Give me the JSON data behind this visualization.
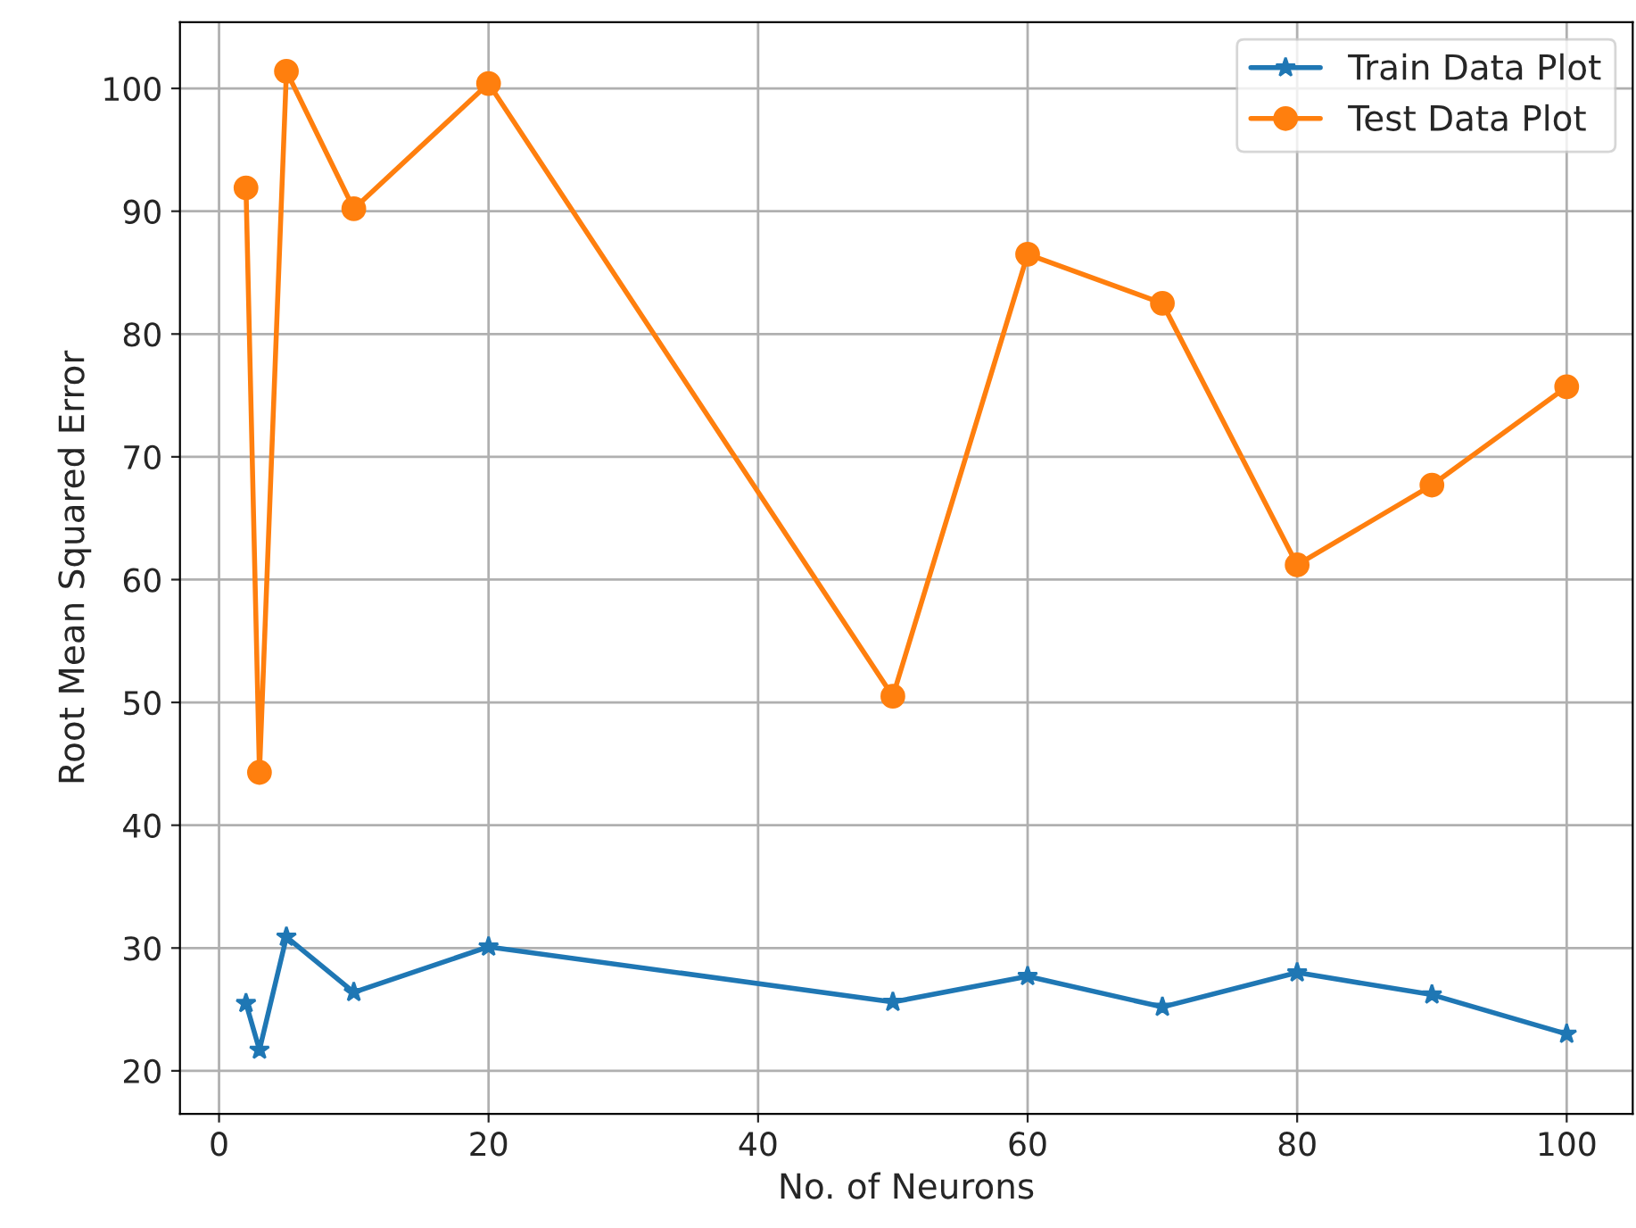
{
  "chart_data": {
    "type": "line",
    "xlabel": "No. of Neurons",
    "ylabel": "Root Mean Squared Error",
    "x": [
      2,
      3,
      5,
      10,
      20,
      50,
      60,
      70,
      80,
      90,
      100
    ],
    "series": [
      {
        "name": "Train Data Plot",
        "color": "#1f77b4",
        "marker": "star",
        "values": [
          25.5,
          21.7,
          30.9,
          26.4,
          30.1,
          25.6,
          27.7,
          25.2,
          28.0,
          26.2,
          23.0
        ]
      },
      {
        "name": "Test Data Plot",
        "color": "#ff7f0e",
        "marker": "circle",
        "values": [
          91.9,
          44.3,
          101.4,
          90.2,
          100.4,
          50.5,
          86.5,
          82.5,
          61.2,
          67.7,
          75.7
        ]
      }
    ],
    "xlim": [
      -2.9,
      104.9
    ],
    "ylim": [
      16.5,
      105.4
    ],
    "xticks": [
      0,
      20,
      40,
      60,
      80,
      100
    ],
    "yticks": [
      20,
      30,
      40,
      50,
      60,
      70,
      80,
      90,
      100
    ],
    "grid": true,
    "legend": "top right",
    "line_style": "solid"
  }
}
